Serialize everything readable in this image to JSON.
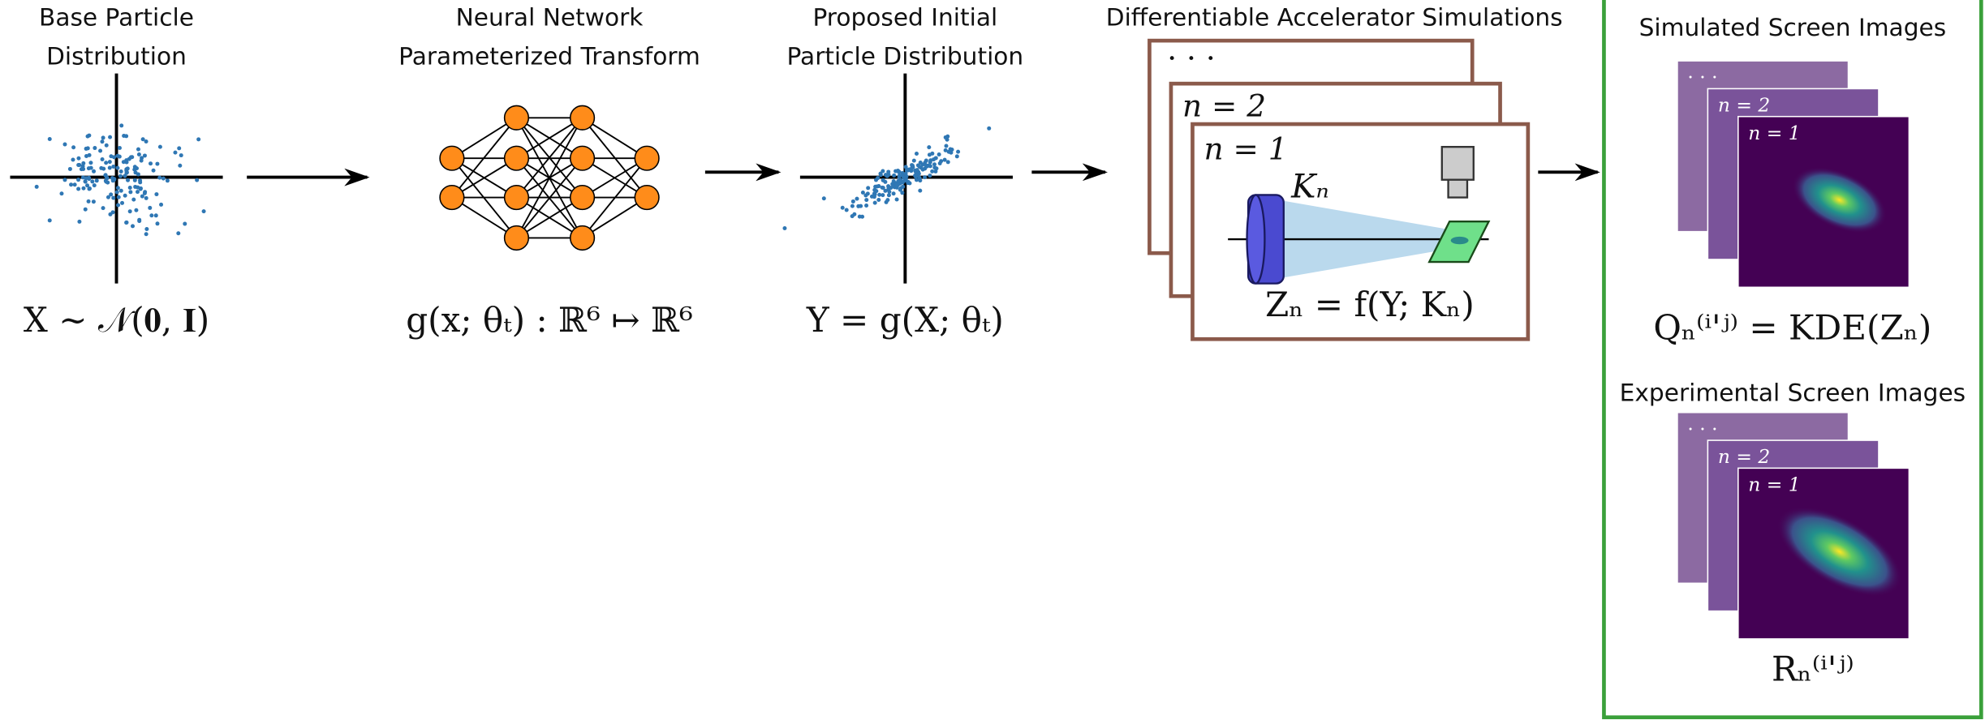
{
  "stages": [
    {
      "title": [
        "Base Particle",
        "Distribution"
      ],
      "formula": "X ∼ 𝒩(𝟎, 𝐈)"
    },
    {
      "title": [
        "Neural Network",
        "Parameterized Transform"
      ],
      "formula": "g(x; θₜ) : ℝ⁶ ↦ ℝ⁶"
    },
    {
      "title": [
        "Proposed Initial",
        "Particle Distribution"
      ],
      "formula": "Y = g(X; θₜ)"
    }
  ],
  "simulations": {
    "title": "Differentiable Accelerator Simulations",
    "frames": [
      "· · ·",
      "n = 2",
      "n = 1"
    ],
    "parameter": "Kₙ",
    "formula": "Zₙ = f(Y; Kₙ)"
  },
  "simulated": {
    "title": "Simulated Screen Images",
    "frames": [
      "· · ·",
      "n = 2",
      "n = 1"
    ],
    "formula": "Qₙ⁽ⁱ'ʲ⁾ = KDE(Zₙ)"
  },
  "experimental": {
    "title": "Experimental Screen Images",
    "frames": [
      "· · ·",
      "n = 2",
      "n = 1"
    ],
    "formula": "Rₙ⁽ⁱ'ʲ⁾"
  }
}
